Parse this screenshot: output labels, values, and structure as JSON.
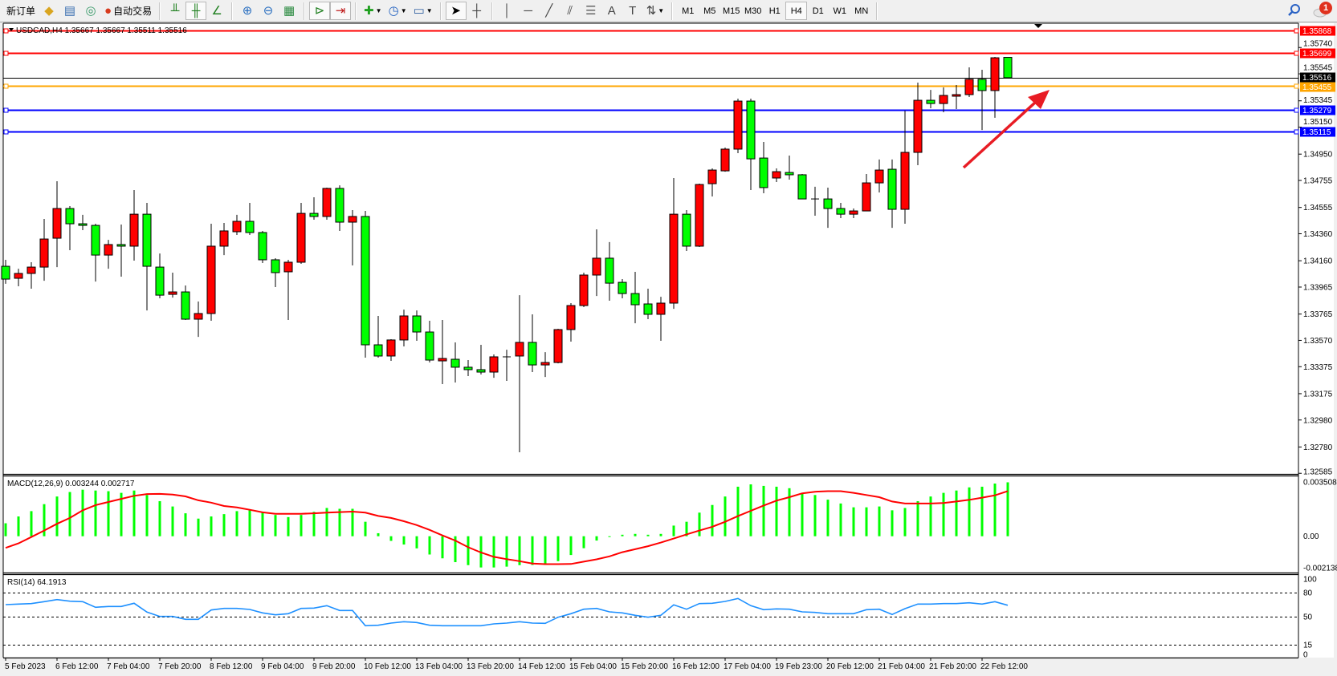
{
  "toolbar": {
    "items": [
      {
        "type": "button",
        "name": "new-order-button",
        "icon": "new-order-icon",
        "glyph": "",
        "label": "新订单"
      },
      {
        "type": "button",
        "name": "expert-advisor-button",
        "icon": "diamond-icon",
        "glyph": "◆",
        "color": "#d9a520"
      },
      {
        "type": "button",
        "name": "market-watch-button",
        "icon": "terminal-icon",
        "glyph": "▤",
        "color": "#3a6fb0"
      },
      {
        "type": "button",
        "name": "signals-button",
        "icon": "signal-icon",
        "glyph": "◎",
        "color": "#3a9a6a"
      },
      {
        "type": "button",
        "name": "auto-trading-button",
        "icon": "auto-trading-icon",
        "glyph": "●",
        "color": "#d83b1e",
        "label": "自动交易"
      },
      {
        "type": "sep"
      },
      {
        "type": "button",
        "name": "bar-chart-button",
        "icon": "bar-chart-icon",
        "glyph": "╨",
        "color": "#208020"
      },
      {
        "type": "button",
        "name": "candlestick-chart-button",
        "icon": "candlestick-icon",
        "glyph": "╫",
        "color": "#208020",
        "active": true
      },
      {
        "type": "button",
        "name": "line-chart-button",
        "icon": "line-chart-icon",
        "glyph": "∠",
        "color": "#208020"
      },
      {
        "type": "sep"
      },
      {
        "type": "button",
        "name": "zoom-in-button",
        "icon": "zoom-in-icon",
        "glyph": "⊕",
        "color": "#2a6fc0"
      },
      {
        "type": "button",
        "name": "zoom-out-button",
        "icon": "zoom-out-icon",
        "glyph": "⊖",
        "color": "#2a6fc0"
      },
      {
        "type": "button",
        "name": "tile-windows-button",
        "icon": "tile-windows-icon",
        "glyph": "▦",
        "color": "#2a8a40"
      },
      {
        "type": "sep"
      },
      {
        "type": "button",
        "name": "auto-scroll-button",
        "icon": "auto-scroll-icon",
        "glyph": "⊳",
        "color": "#208020",
        "active": true
      },
      {
        "type": "button",
        "name": "chart-shift-button",
        "icon": "chart-shift-icon",
        "glyph": "⇥",
        "color": "#c02020",
        "active": true
      },
      {
        "type": "sep"
      },
      {
        "type": "button",
        "name": "indicators-button",
        "icon": "indicators-icon",
        "glyph": "✚",
        "color": "#20a020",
        "dropdown": true
      },
      {
        "type": "button",
        "name": "periods-button",
        "icon": "clock-icon",
        "glyph": "◷",
        "color": "#1f5fbf",
        "dropdown": true
      },
      {
        "type": "button",
        "name": "templates-button",
        "icon": "template-icon",
        "glyph": "▭",
        "color": "#3060a0",
        "dropdown": true
      },
      {
        "type": "sep"
      },
      {
        "type": "button",
        "name": "cursor-button",
        "icon": "cursor-icon",
        "glyph": "➤",
        "color": "#000",
        "active": true
      },
      {
        "type": "button",
        "name": "crosshair-button",
        "icon": "crosshair-icon",
        "glyph": "┼",
        "color": "#444"
      },
      {
        "type": "sep"
      },
      {
        "type": "button",
        "name": "vertical-line-button",
        "icon": "vertical-line-icon",
        "glyph": "│",
        "color": "#444"
      },
      {
        "type": "button",
        "name": "horizontal-line-button",
        "icon": "horizontal-line-icon",
        "glyph": "─",
        "color": "#444"
      },
      {
        "type": "button",
        "name": "trendline-button",
        "icon": "trendline-icon",
        "glyph": "╱",
        "color": "#444"
      },
      {
        "type": "button",
        "name": "equidistant-channel-button",
        "icon": "channel-icon",
        "glyph": "⫽",
        "color": "#444"
      },
      {
        "type": "button",
        "name": "fibonacci-button",
        "icon": "fibonacci-icon",
        "glyph": "☰",
        "color": "#666"
      },
      {
        "type": "button",
        "name": "text-button",
        "icon": "text-icon",
        "glyph": "A",
        "color": "#444"
      },
      {
        "type": "button",
        "name": "text-label-button",
        "icon": "text-label-icon",
        "glyph": "T",
        "color": "#444"
      },
      {
        "type": "button",
        "name": "arrows-button",
        "icon": "arrows-icon",
        "glyph": "⇅",
        "color": "#444",
        "dropdown": true
      },
      {
        "type": "sep"
      }
    ],
    "timeframes": [
      "M1",
      "M5",
      "M15",
      "M30",
      "H1",
      "H4",
      "D1",
      "W1",
      "MN"
    ],
    "active_timeframe": "H4",
    "search_icon": "search-icon",
    "notification_count": "1"
  },
  "chart": {
    "header": "USDCAD,H4  1.35667 1.35667 1.35511 1.35516",
    "symbol": "USDCAD",
    "timeframe": "H4",
    "ohlc_current": {
      "open": 1.35667,
      "high": 1.35667,
      "low": 1.35511,
      "close": 1.35516
    },
    "colors": {
      "bull": "#ff0000",
      "bear": "#00ff00",
      "outline": "#000000",
      "macd_hist": "#00ff00",
      "macd_signal": "#ff0000",
      "rsi": "#1e90ff"
    },
    "price_ticks": [
      "1.35740",
      "1.35545",
      "1.35345",
      "1.35150",
      "1.34950",
      "1.34755",
      "1.34555",
      "1.34360",
      "1.34160",
      "1.33965",
      "1.33765",
      "1.33570",
      "1.33375",
      "1.33175",
      "1.32980",
      "1.32780",
      "1.32585"
    ],
    "price_range": [
      1.32585,
      1.35868
    ],
    "levels": [
      {
        "price": 1.35868,
        "label": "1.35868",
        "color": "#ff0000"
      },
      {
        "price": 1.35699,
        "label": "1.35699",
        "color": "#ff0000"
      },
      {
        "price": 1.35455,
        "label": "1.35455",
        "color": "#ffa500"
      },
      {
        "price": 1.35279,
        "label": "1.35279",
        "color": "#0000ff"
      },
      {
        "price": 1.35115,
        "label": "1.35115",
        "color": "#0000ff"
      }
    ],
    "bid": {
      "price": 1.35516,
      "label": "1.35516",
      "color": "#000000"
    },
    "annotation_arrow": {
      "color": "#e81c24",
      "direction": "up-right"
    },
    "time_labels": [
      "5 Feb 2023",
      "6 Feb 12:00",
      "7 Feb 04:00",
      "7 Feb 20:00",
      "8 Feb 12:00",
      "9 Feb 04:00",
      "9 Feb 20:00",
      "10 Feb 12:00",
      "13 Feb 04:00",
      "13 Feb 20:00",
      "14 Feb 12:00",
      "15 Feb 04:00",
      "15 Feb 20:00",
      "16 Feb 12:00",
      "17 Feb 04:00",
      "19 Feb 23:00",
      "20 Feb 12:00",
      "21 Feb 04:00",
      "21 Feb 20:00",
      "22 Feb 12:00"
    ]
  },
  "macd": {
    "label": "MACD(12,26,9) 0.003244 0.002717",
    "ticks": [
      "0.003508",
      "0.00",
      "-0.002138"
    ],
    "range": [
      -0.002138,
      0.003508
    ]
  },
  "rsi": {
    "label": "RSI(14) 64.1913",
    "ticks": [
      "100",
      "80",
      "50",
      "15",
      "0"
    ],
    "levels": [
      80,
      50,
      15
    ],
    "range": [
      0,
      100
    ]
  },
  "chart_data": {
    "type": "candlestick",
    "ohlc_order": [
      "open",
      "high",
      "low",
      "close"
    ],
    "candles": [
      [
        1.34119,
        1.34167,
        1.33989,
        1.34024
      ],
      [
        1.3403,
        1.34101,
        1.33971,
        1.34066
      ],
      [
        1.34066,
        1.34149,
        1.33953,
        1.34113
      ],
      [
        1.34113,
        1.3447,
        1.34012,
        1.34321
      ],
      [
        1.34327,
        1.34749,
        1.34113,
        1.34547
      ],
      [
        1.34547,
        1.34565,
        1.34238,
        1.34434
      ],
      [
        1.34434,
        1.345,
        1.34387,
        1.34422
      ],
      [
        1.34422,
        1.34434,
        1.34006,
        1.34202
      ],
      [
        1.34202,
        1.34315,
        1.34101,
        1.3428
      ],
      [
        1.3428,
        1.34428,
        1.34042,
        1.34268
      ],
      [
        1.34268,
        1.34684,
        1.34161,
        1.34505
      ],
      [
        1.34505,
        1.34589,
        1.33792,
        1.34119
      ],
      [
        1.34113,
        1.34214,
        1.33882,
        1.33905
      ],
      [
        1.33911,
        1.34072,
        1.33887,
        1.33929
      ],
      [
        1.33929,
        1.33977,
        1.33721,
        1.33727
      ],
      [
        1.33727,
        1.33858,
        1.33596,
        1.33769
      ],
      [
        1.33769,
        1.34434,
        1.33715,
        1.34268
      ],
      [
        1.34268,
        1.3444,
        1.34202,
        1.34381
      ],
      [
        1.34375,
        1.345,
        1.34351,
        1.34452
      ],
      [
        1.34452,
        1.34589,
        1.34351,
        1.34369
      ],
      [
        1.34369,
        1.34381,
        1.34143,
        1.34167
      ],
      [
        1.34167,
        1.34179,
        1.33965,
        1.34072
      ],
      [
        1.34078,
        1.34167,
        1.33721,
        1.34149
      ],
      [
        1.34149,
        1.34589,
        1.34137,
        1.34511
      ],
      [
        1.34511,
        1.3463,
        1.34464,
        1.34488
      ],
      [
        1.34488,
        1.34702,
        1.34464,
        1.34696
      ],
      [
        1.34696,
        1.34719,
        1.34381,
        1.34446
      ],
      [
        1.34446,
        1.34535,
        1.34125,
        1.34488
      ],
      [
        1.34488,
        1.34529,
        1.33442,
        1.33537
      ],
      [
        1.33537,
        1.33751,
        1.33442,
        1.33454
      ],
      [
        1.33454,
        1.33579,
        1.33418,
        1.33573
      ],
      [
        1.33573,
        1.33798,
        1.33525,
        1.33751
      ],
      [
        1.33751,
        1.33792,
        1.33567,
        1.33632
      ],
      [
        1.33632,
        1.33715,
        1.33406,
        1.33424
      ],
      [
        1.33418,
        1.33721,
        1.33246,
        1.33436
      ],
      [
        1.3343,
        1.33555,
        1.33258,
        1.33371
      ],
      [
        1.33371,
        1.33424,
        1.33305,
        1.33353
      ],
      [
        1.33353,
        1.33537,
        1.33317,
        1.33335
      ],
      [
        1.33335,
        1.33466,
        1.33293,
        1.33448
      ],
      [
        1.33448,
        1.33501,
        1.3327,
        1.33448
      ],
      [
        1.33454,
        1.33905,
        1.32741,
        1.33555
      ],
      [
        1.33555,
        1.33763,
        1.33335,
        1.33388
      ],
      [
        1.33388,
        1.33483,
        1.33299,
        1.33406
      ],
      [
        1.33406,
        1.33656,
        1.334,
        1.3365
      ],
      [
        1.3365,
        1.33846,
        1.33561,
        1.33828
      ],
      [
        1.33828,
        1.34072,
        1.33816,
        1.34054
      ],
      [
        1.34054,
        1.34393,
        1.33899,
        1.34179
      ],
      [
        1.34179,
        1.34298,
        1.33864,
        1.33994
      ],
      [
        1.34,
        1.34024,
        1.33882,
        1.33917
      ],
      [
        1.33917,
        1.34078,
        1.33697,
        1.33834
      ],
      [
        1.3384,
        1.33953,
        1.33727,
        1.33763
      ],
      [
        1.33763,
        1.33893,
        1.33567,
        1.33846
      ],
      [
        1.33846,
        1.34773,
        1.33804,
        1.34505
      ],
      [
        1.34505,
        1.34535,
        1.34232,
        1.34268
      ],
      [
        1.34268,
        1.34731,
        1.34262,
        1.34725
      ],
      [
        1.34731,
        1.34844,
        1.34636,
        1.34832
      ],
      [
        1.34826,
        1.34999,
        1.3482,
        1.34987
      ],
      [
        1.34987,
        1.35361,
        1.34957,
        1.35343
      ],
      [
        1.35343,
        1.35361,
        1.34684,
        1.34915
      ],
      [
        1.34921,
        1.3504,
        1.3466,
        1.34702
      ],
      [
        1.34773,
        1.34844,
        1.34743,
        1.3482
      ],
      [
        1.34814,
        1.34939,
        1.34761,
        1.34797
      ],
      [
        1.34797,
        1.34803,
        1.34618,
        1.34618
      ],
      [
        1.34618,
        1.34708,
        1.34494,
        1.34618
      ],
      [
        1.34618,
        1.34702,
        1.34404,
        1.34547
      ],
      [
        1.34547,
        1.34589,
        1.34476,
        1.34505
      ],
      [
        1.34505,
        1.34547,
        1.34476,
        1.34529
      ],
      [
        1.34529,
        1.34803,
        1.34529,
        1.34737
      ],
      [
        1.34737,
        1.3491,
        1.34666,
        1.34832
      ],
      [
        1.34838,
        1.3491,
        1.34404,
        1.34541
      ],
      [
        1.34541,
        1.35272,
        1.34434,
        1.34963
      ],
      [
        1.34963,
        1.3548,
        1.34868,
        1.35349
      ],
      [
        1.35349,
        1.35426,
        1.3529,
        1.35325
      ],
      [
        1.35325,
        1.35444,
        1.3526,
        1.35385
      ],
      [
        1.35379,
        1.35462,
        1.35284,
        1.35391
      ],
      [
        1.35391,
        1.35593,
        1.35373,
        1.35504
      ],
      [
        1.35504,
        1.35575,
        1.35129,
        1.35421
      ],
      [
        1.35421,
        1.3567,
        1.35219,
        1.35664
      ],
      [
        1.35667,
        1.35667,
        1.35511,
        1.35516
      ]
    ],
    "macd_histogram": [
      0.00078,
      0.00119,
      0.00151,
      0.00193,
      0.00239,
      0.00266,
      0.0028,
      0.00275,
      0.00271,
      0.00261,
      0.00275,
      0.00248,
      0.00211,
      0.00179,
      0.00138,
      0.00106,
      0.00119,
      0.00133,
      0.00151,
      0.00156,
      0.00142,
      0.00128,
      0.00115,
      0.00128,
      0.00147,
      0.0017,
      0.00165,
      0.00165,
      0.00087,
      0.00018,
      -0.00028,
      -0.0005,
      -0.00073,
      -0.0011,
      -0.00133,
      -0.00156,
      -0.00174,
      -0.00188,
      -0.00188,
      -0.00183,
      -0.00174,
      -0.00173,
      -0.00173,
      -0.0015,
      -0.00113,
      -0.00072,
      -0.00026,
      -5e-05,
      9e-05,
      0.00014,
      9e-05,
      0.00014,
      0.00064,
      0.00087,
      0.00142,
      0.00188,
      0.00239,
      0.00298,
      0.00312,
      0.00303,
      0.00298,
      0.00289,
      0.00261,
      0.00248,
      0.0022,
      0.00197,
      0.00174,
      0.00174,
      0.00179,
      0.00156,
      0.0017,
      0.00211,
      0.00239,
      0.00261,
      0.00275,
      0.00294,
      0.00298,
      0.00317,
      0.003244
    ],
    "macd_signal": [
      -0.0007,
      -0.00043,
      -5e-05,
      0.00034,
      0.00075,
      0.0011,
      0.00156,
      0.00187,
      0.00206,
      0.00225,
      0.00243,
      0.00254,
      0.00255,
      0.00251,
      0.0024,
      0.00216,
      0.00202,
      0.00182,
      0.00173,
      0.00159,
      0.00144,
      0.00135,
      0.00135,
      0.00135,
      0.00138,
      0.00142,
      0.00145,
      0.00148,
      0.00142,
      0.00122,
      0.0011,
      0.0009,
      0.00067,
      0.00038,
      5e-05,
      -0.00026,
      -0.00066,
      -0.00098,
      -0.00124,
      -0.00138,
      -0.0015,
      -0.00164,
      -0.00168,
      -0.00168,
      -0.00167,
      -0.00153,
      -0.00139,
      -0.00121,
      -0.00096,
      -0.00078,
      -0.0006,
      -0.00038,
      -0.00014,
      0.00011,
      0.00034,
      0.00057,
      0.00087,
      0.00121,
      0.00153,
      0.00185,
      0.00214,
      0.00235,
      0.00258,
      0.00268,
      0.00271,
      0.00271,
      0.00261,
      0.00248,
      0.00235,
      0.00209,
      0.00197,
      0.00197,
      0.00197,
      0.002,
      0.00209,
      0.00219,
      0.00232,
      0.00246,
      0.002717
    ],
    "rsi": [
      65,
      65.7,
      66.3,
      68.7,
      71.3,
      69.3,
      68.7,
      61.7,
      62.7,
      62.7,
      66.7,
      55.7,
      50.3,
      50.3,
      46.7,
      46.7,
      58.3,
      60.3,
      60.3,
      59,
      54.7,
      52.3,
      53.7,
      60.3,
      60.7,
      63.7,
      57.7,
      57.7,
      38.7,
      39.3,
      42,
      43.7,
      42.7,
      39.3,
      38.7,
      38.7,
      38.7,
      38.7,
      41,
      42,
      43.7,
      42,
      41.7,
      49.3,
      53.7,
      59.3,
      60.3,
      56,
      54.7,
      51.7,
      49.3,
      51.7,
      64.7,
      59.3,
      66.3,
      66.7,
      69,
      72.7,
      63.7,
      58.7,
      59.7,
      59.3,
      56,
      55.3,
      53.7,
      53.7,
      53.7,
      58.7,
      59.3,
      52.7,
      60,
      65.7,
      65.7,
      66.3,
      66.3,
      67.3,
      65.7,
      68.7,
      64.1913
    ]
  }
}
